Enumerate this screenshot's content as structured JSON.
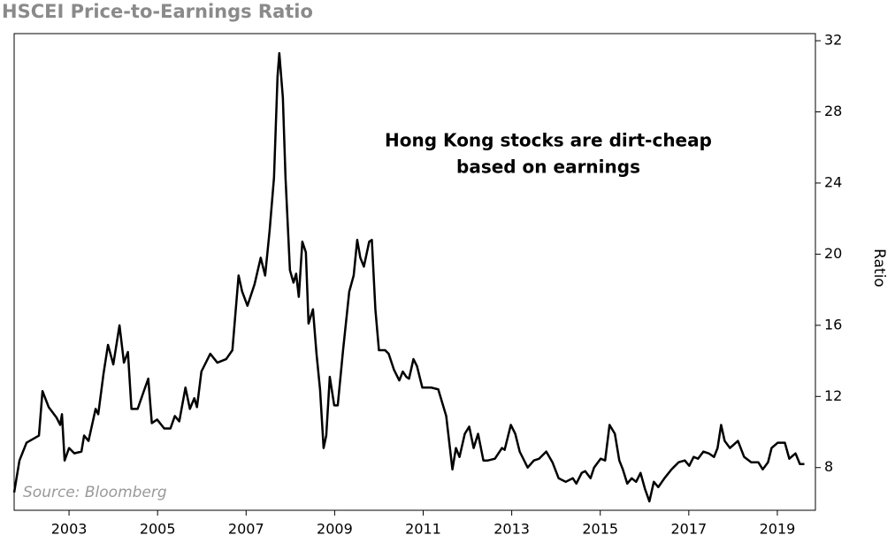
{
  "chart_data": {
    "type": "line",
    "title": "HSCEI Price-to-Earnings Ratio",
    "y_label": "Ratio",
    "annotation": [
      "Hong Kong stocks are dirt-cheap",
      "based on earnings"
    ],
    "source": "Source: Bloomberg",
    "color": "#000000",
    "x": [
      2001.76,
      2001.88,
      2002.04,
      2002.32,
      2002.4,
      2002.54,
      2002.72,
      2002.8,
      2002.84,
      2002.9,
      2003.0,
      2003.12,
      2003.28,
      2003.34,
      2003.44,
      2003.6,
      2003.66,
      2003.78,
      2003.88,
      2004.0,
      2004.14,
      2004.24,
      2004.33,
      2004.41,
      2004.55,
      2004.69,
      2004.79,
      2004.87,
      2004.99,
      2005.15,
      2005.29,
      2005.39,
      2005.49,
      2005.63,
      2005.73,
      2005.83,
      2005.89,
      2005.99,
      2006.19,
      2006.35,
      2006.55,
      2006.69,
      2006.83,
      2006.91,
      2007.03,
      2007.19,
      2007.33,
      2007.43,
      2007.53,
      2007.63,
      2007.71,
      2007.75,
      2007.83,
      2007.89,
      2007.99,
      2008.07,
      2008.13,
      2008.19,
      2008.27,
      2008.35,
      2008.41,
      2008.51,
      2008.59,
      2008.67,
      2008.75,
      2008.81,
      2008.89,
      2008.99,
      2009.07,
      2009.19,
      2009.33,
      2009.43,
      2009.51,
      2009.58,
      2009.66,
      2009.78,
      2009.84,
      2009.92,
      2010.0,
      2010.14,
      2010.22,
      2010.34,
      2010.46,
      2010.54,
      2010.62,
      2010.68,
      2010.78,
      2010.86,
      2010.98,
      2011.18,
      2011.34,
      2011.52,
      2011.66,
      2011.74,
      2011.82,
      2011.94,
      2012.04,
      2012.14,
      2012.24,
      2012.36,
      2012.46,
      2012.62,
      2012.78,
      2012.84,
      2012.98,
      2013.08,
      2013.18,
      2013.36,
      2013.5,
      2013.62,
      2013.78,
      2013.92,
      2014.06,
      2014.22,
      2014.38,
      2014.46,
      2014.58,
      2014.66,
      2014.78,
      2014.86,
      2015.01,
      2015.11,
      2015.21,
      2015.33,
      2015.43,
      2015.51,
      2015.61,
      2015.71,
      2015.81,
      2015.91,
      2016.01,
      2016.11,
      2016.21,
      2016.31,
      2016.45,
      2016.61,
      2016.77,
      2016.91,
      2017.01,
      2017.11,
      2017.21,
      2017.33,
      2017.45,
      2017.57,
      2017.65,
      2017.73,
      2017.81,
      2017.93,
      2018.11,
      2018.25,
      2018.41,
      2018.57,
      2018.67,
      2018.79,
      2018.87,
      2019.01,
      2019.17,
      2019.27,
      2019.41,
      2019.51,
      2019.61
    ],
    "values": [
      6.6,
      8.4,
      9.4,
      9.8,
      12.3,
      11.4,
      10.8,
      10.4,
      11.0,
      8.4,
      9.1,
      8.8,
      8.9,
      9.8,
      9.5,
      11.3,
      11.0,
      13.3,
      14.9,
      13.8,
      16.0,
      13.9,
      14.5,
      11.3,
      11.3,
      12.3,
      13.0,
      10.5,
      10.7,
      10.2,
      10.2,
      10.9,
      10.6,
      12.5,
      11.3,
      11.9,
      11.4,
      13.4,
      14.4,
      13.9,
      14.1,
      14.6,
      18.8,
      17.9,
      17.1,
      18.3,
      19.8,
      18.8,
      21.3,
      24.3,
      30.0,
      31.3,
      28.8,
      24.3,
      19.1,
      18.4,
      18.9,
      17.6,
      20.7,
      20.1,
      16.1,
      16.9,
      14.4,
      12.4,
      9.1,
      9.8,
      13.1,
      11.5,
      11.5,
      14.6,
      17.9,
      18.8,
      20.8,
      19.8,
      19.3,
      20.7,
      20.8,
      16.9,
      14.6,
      14.6,
      14.4,
      13.5,
      12.9,
      13.4,
      13.1,
      13.0,
      14.1,
      13.7,
      12.5,
      12.5,
      12.4,
      10.9,
      7.9,
      9.1,
      8.6,
      9.9,
      10.3,
      9.1,
      9.9,
      8.4,
      8.4,
      8.5,
      9.1,
      9.0,
      10.4,
      9.9,
      8.9,
      8.0,
      8.4,
      8.5,
      8.9,
      8.3,
      7.4,
      7.2,
      7.4,
      7.1,
      7.7,
      7.8,
      7.4,
      8.0,
      8.5,
      8.4,
      10.4,
      9.9,
      8.4,
      7.9,
      7.1,
      7.4,
      7.2,
      7.7,
      6.8,
      6.1,
      7.2,
      6.9,
      7.4,
      7.9,
      8.3,
      8.4,
      8.1,
      8.6,
      8.5,
      8.9,
      8.8,
      8.6,
      9.1,
      10.4,
      9.5,
      9.1,
      9.5,
      8.6,
      8.3,
      8.3,
      7.9,
      8.3,
      9.1,
      9.4,
      9.4,
      8.5,
      8.8,
      8.2,
      8.2
    ],
    "xlim": [
      2001.76,
      2019.86
    ],
    "xticks": [
      2003,
      2005,
      2007,
      2009,
      2011,
      2013,
      2015,
      2017,
      2019
    ],
    "ylim": [
      5.6,
      32.4
    ],
    "yticks": [
      8,
      12,
      16,
      20,
      24,
      28,
      32
    ],
    "grid": false
  }
}
